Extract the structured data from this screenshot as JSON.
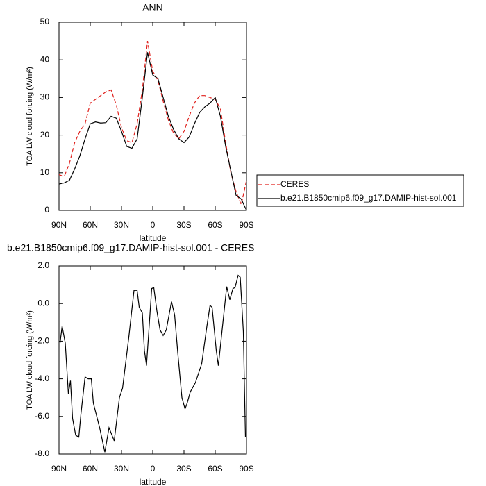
{
  "chart_data": [
    {
      "type": "line",
      "title": "ANN",
      "xlabel": "latitude",
      "ylabel": "TOA LW cloud forcing (W/m²)",
      "x": [
        90,
        85,
        80,
        75,
        70,
        65,
        60,
        55,
        50,
        45,
        40,
        35,
        30,
        25,
        20,
        15,
        10,
        5,
        0,
        -5,
        -10,
        -15,
        -20,
        -25,
        -30,
        -35,
        -40,
        -45,
        -50,
        -55,
        -60,
        -65,
        -70,
        -75,
        -80,
        -85,
        -90
      ],
      "series": [
        {
          "name": "CERES",
          "color": "#e0201c",
          "dash": true,
          "values": [
            9.5,
            9,
            12.5,
            18,
            21,
            23,
            28.5,
            29.5,
            30.5,
            31.5,
            32,
            28,
            22,
            18.5,
            18,
            23,
            32,
            45,
            37,
            34.5,
            29,
            24,
            20.5,
            19,
            21,
            25,
            28.5,
            30.5,
            30.5,
            30,
            29.5,
            27,
            18,
            10,
            5,
            1.5,
            8
          ]
        },
        {
          "name": "b.e21.B1850cmip6.f09_g17.DAMIP-hist-sol.001",
          "color": "#000000",
          "dash": false,
          "values": [
            7,
            7.3,
            8,
            11,
            14.5,
            19,
            23,
            23.5,
            23.2,
            23.3,
            25,
            24.5,
            21,
            17,
            16.5,
            19,
            30,
            42,
            36,
            35,
            30,
            25,
            21.5,
            19,
            18,
            19.5,
            23,
            26,
            27.5,
            28.5,
            30,
            25,
            17,
            10.5,
            4,
            3,
            0
          ]
        }
      ],
      "xlim": [
        90,
        -90
      ],
      "xticks": [
        {
          "value": 90,
          "label": "90N"
        },
        {
          "value": 60,
          "label": "60N"
        },
        {
          "value": 30,
          "label": "30N"
        },
        0,
        {
          "value": -30,
          "label": "30S"
        },
        {
          "value": -60,
          "label": "60S"
        },
        {
          "value": -90,
          "label": "90S"
        }
      ],
      "ylim": [
        0,
        50
      ],
      "yticks": [
        0,
        10,
        20,
        30,
        40,
        50
      ],
      "legend": "right"
    },
    {
      "type": "line",
      "title": "b.e21.B1850cmip6.f09_g17.DAMIP-hist-sol.001 - CERES",
      "xlabel": "latitude",
      "ylabel": "TOA LW cloud forcing (W/m²)",
      "x": [
        89,
        87,
        84,
        81,
        79,
        77,
        74,
        71,
        69,
        65,
        62,
        59,
        57,
        51,
        46,
        42,
        37,
        32,
        29,
        23,
        18,
        15,
        13,
        10,
        8,
        6,
        1,
        -1,
        -4,
        -7,
        -10,
        -13,
        -18,
        -21,
        -24,
        -28,
        -31,
        -33,
        -36,
        -41,
        -47,
        -52,
        -55,
        -57,
        -61,
        -63,
        -67,
        -71,
        -74,
        -77,
        -79,
        -82,
        -84,
        -87,
        -89
      ],
      "series": [
        {
          "color": "#000000",
          "dash": false,
          "values": [
            -2.1,
            -1.2,
            -2.1,
            -4.8,
            -4.1,
            -6.1,
            -7,
            -7.1,
            -5.9,
            -3.9,
            -4,
            -4,
            -5.3,
            -6.6,
            -7.9,
            -6.6,
            -7.3,
            -5,
            -4.5,
            -1.8,
            0.7,
            0.7,
            -0.2,
            -0.5,
            -2.5,
            -3.3,
            0.8,
            0.85,
            -0.4,
            -1.4,
            -1.7,
            -1.4,
            0.1,
            -0.6,
            -2.6,
            -5,
            -5.6,
            -5.3,
            -4.7,
            -4.2,
            -3.2,
            -1.2,
            -0.1,
            -0.2,
            -2.5,
            -3.3,
            -1.2,
            0.9,
            0.2,
            0.8,
            0.85,
            1.5,
            1.4,
            -1.5,
            -7.1
          ]
        }
      ],
      "xlim": [
        90,
        -90
      ],
      "xticks": [
        {
          "value": 90,
          "label": "90N"
        },
        {
          "value": 60,
          "label": "60N"
        },
        {
          "value": 30,
          "label": "30N"
        },
        0,
        {
          "value": -30,
          "label": "30S"
        },
        {
          "value": -60,
          "label": "60S"
        },
        {
          "value": -90,
          "label": "90S"
        }
      ],
      "ylim": [
        -8,
        2
      ],
      "yticks": [
        {
          "value": -8,
          "label": "-8.0"
        },
        {
          "value": -6,
          "label": "-6.0"
        },
        {
          "value": -4,
          "label": "-4.0"
        },
        {
          "value": -2,
          "label": "-2.0"
        },
        {
          "value": 0,
          "label": "0.0"
        },
        {
          "value": 2,
          "label": "2.0"
        }
      ]
    }
  ]
}
